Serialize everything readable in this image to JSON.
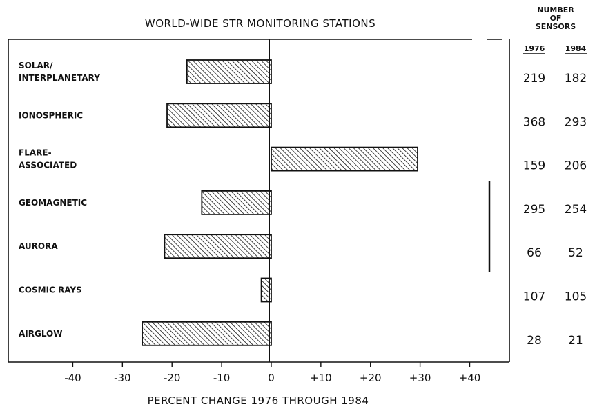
{
  "chart_data": {
    "type": "bar",
    "orientation": "horizontal",
    "title": "WORLD-WIDE STR MONITORING STATIONS",
    "xlabel": "PERCENT CHANGE 1976 THROUGH 1984",
    "xlim": [
      -53,
      48
    ],
    "x_ticks": [
      "-40",
      "-30",
      "-20",
      "-10",
      "0",
      "+10",
      "+20",
      "+30",
      "+40"
    ],
    "categories": [
      [
        "SOLAR/",
        "INTERPLANETARY"
      ],
      [
        "IONOSPHERIC"
      ],
      [
        "FLARE-",
        "ASSOCIATED"
      ],
      [
        "GEOMAGNETIC"
      ],
      [
        "AURORA"
      ],
      [
        "COSMIC RAYS"
      ],
      [
        "AIRGLOW"
      ]
    ],
    "values": [
      -17,
      -21,
      29.5,
      -14,
      -21.5,
      -2,
      -26
    ],
    "sensor_table": {
      "header": [
        "NUMBER",
        "OF",
        "SENSORS"
      ],
      "columns": [
        "1976",
        "1984"
      ],
      "rows": [
        [
          "219",
          "182"
        ],
        [
          "368",
          "293"
        ],
        [
          "159",
          "206"
        ],
        [
          "295",
          "254"
        ],
        [
          "66",
          "52"
        ],
        [
          "107",
          "105"
        ],
        [
          "28",
          "21"
        ]
      ]
    },
    "bar_fill": "diagonal-hatch",
    "grid": false
  }
}
